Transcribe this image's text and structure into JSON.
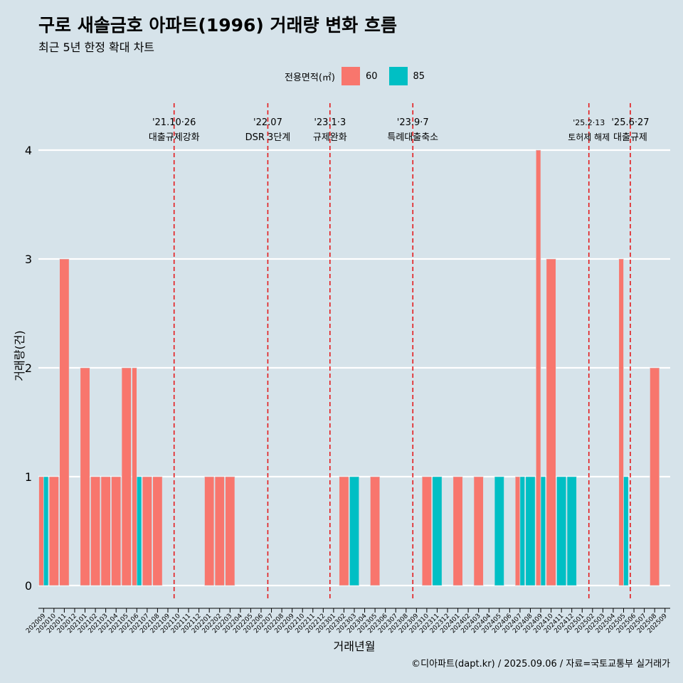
{
  "title": "구로 새솔금호 아파트(1996) 거래량 변화 흐름",
  "subtitle": "최근 5년 한정 확대 차트",
  "caption": "©디아파트(dapt.kr) / 2025.09.06 / 자료=국토교통부 실거래가",
  "legend": {
    "title": "전용면적(㎡)",
    "items": [
      {
        "label": "60",
        "color": "#f8766d"
      },
      {
        "label": "85",
        "color": "#00bfc4"
      }
    ]
  },
  "chart_data": {
    "type": "bar",
    "title": "구로 새솔금호 아파트(1996) 거래량 변화 흐름",
    "xlabel": "거래년월",
    "ylabel": "거래량(건)",
    "ylim": [
      0,
      4
    ],
    "yticks": [
      0,
      1,
      2,
      3,
      4
    ],
    "categories": [
      "202009",
      "202010",
      "202011",
      "202012",
      "202101",
      "202102",
      "202103",
      "202104",
      "202105",
      "202106",
      "202107",
      "202108",
      "202109",
      "202110",
      "202111",
      "202112",
      "202201",
      "202202",
      "202203",
      "202204",
      "202205",
      "202206",
      "202207",
      "202208",
      "202209",
      "202210",
      "202211",
      "202212",
      "202301",
      "202302",
      "202303",
      "202304",
      "202305",
      "202306",
      "202307",
      "202308",
      "202309",
      "202310",
      "202311",
      "202312",
      "202401",
      "202402",
      "202403",
      "202404",
      "202405",
      "202406",
      "202407",
      "202408",
      "202409",
      "202410",
      "202411",
      "202412",
      "202501",
      "202502",
      "202503",
      "202504",
      "202505",
      "202506",
      "202507",
      "202508",
      "202509"
    ],
    "series": [
      {
        "name": "60",
        "color": "#f8766d",
        "values": [
          1,
          1,
          3,
          0,
          2,
          1,
          1,
          1,
          2,
          2,
          1,
          1,
          0,
          0,
          0,
          0,
          1,
          1,
          1,
          0,
          0,
          0,
          0,
          0,
          0,
          0,
          0,
          0,
          0,
          1,
          0,
          0,
          1,
          0,
          0,
          0,
          0,
          1,
          0,
          0,
          1,
          0,
          1,
          0,
          0,
          0,
          1,
          0,
          4,
          3,
          0,
          0,
          0,
          0,
          0,
          0,
          3,
          0,
          0,
          2,
          0
        ]
      },
      {
        "name": "85",
        "color": "#00bfc4",
        "values": [
          1,
          0,
          0,
          0,
          0,
          0,
          0,
          0,
          0,
          1,
          0,
          0,
          0,
          0,
          0,
          0,
          0,
          0,
          0,
          0,
          0,
          0,
          0,
          0,
          0,
          0,
          0,
          0,
          0,
          0,
          1,
          0,
          0,
          0,
          0,
          0,
          0,
          0,
          1,
          0,
          0,
          0,
          0,
          0,
          1,
          0,
          1,
          1,
          1,
          0,
          1,
          1,
          0,
          0,
          0,
          0,
          1,
          0,
          0,
          0,
          0
        ]
      }
    ],
    "events": [
      {
        "date": "'21.10·26",
        "label": "대출규제강화",
        "at": 13.1
      },
      {
        "date": "'22.07",
        "label": "DSR 3단계",
        "at": 22.15
      },
      {
        "date": "'23.1·3",
        "label": "규제완화",
        "at": 28.15
      },
      {
        "date": "'23.9·7",
        "label": "특례대출축소",
        "at": 36.15
      },
      {
        "date": "'25.2·13",
        "label": "토허제 해제",
        "at": 53.15
      },
      {
        "date": "'25.6·27",
        "label": "대출규제",
        "at": 57.15
      }
    ],
    "grid": true,
    "legend_position": "top"
  }
}
